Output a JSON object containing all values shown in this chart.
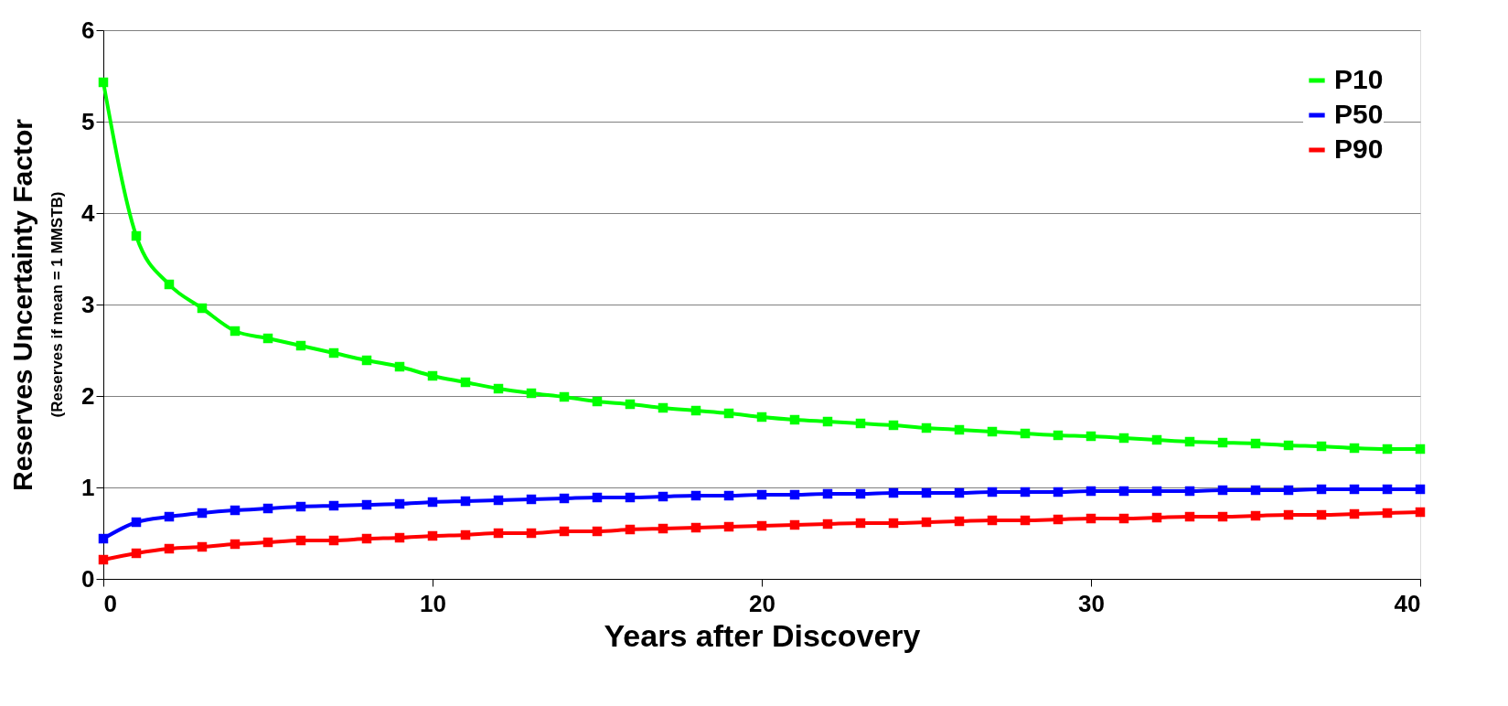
{
  "chart_data": {
    "type": "line",
    "xlabel": "Years after Discovery",
    "ylabel": "Reserves Uncertainty Factor",
    "annotations": [
      "(Reserves if mean = 1 MMSTB)"
    ],
    "x": [
      0,
      1,
      2,
      3,
      4,
      5,
      6,
      7,
      8,
      9,
      10,
      11,
      12,
      13,
      14,
      15,
      16,
      17,
      18,
      19,
      20,
      21,
      22,
      23,
      24,
      25,
      26,
      27,
      28,
      29,
      30,
      31,
      32,
      33,
      34,
      35,
      36,
      37,
      38,
      39,
      40
    ],
    "xlim": [
      0,
      40
    ],
    "xticks": [
      0,
      10,
      20,
      30,
      40
    ],
    "ylim": [
      0,
      6
    ],
    "yticks": [
      0,
      1,
      2,
      3,
      4,
      5,
      6
    ],
    "grid": "y",
    "legend": "top right",
    "marker": "square",
    "line_style": "solid",
    "series": [
      {
        "name": "P10",
        "color": "#00ff00",
        "values": [
          5.43,
          3.75,
          3.22,
          2.96,
          2.71,
          2.63,
          2.55,
          2.47,
          2.39,
          2.32,
          2.22,
          2.15,
          2.08,
          2.03,
          1.99,
          1.94,
          1.91,
          1.87,
          1.84,
          1.81,
          1.77,
          1.74,
          1.72,
          1.7,
          1.68,
          1.65,
          1.63,
          1.61,
          1.59,
          1.57,
          1.56,
          1.54,
          1.52,
          1.5,
          1.49,
          1.48,
          1.46,
          1.45,
          1.43,
          1.42,
          1.42
        ]
      },
      {
        "name": "P50",
        "color": "#0000ff",
        "values": [
          0.44,
          0.62,
          0.68,
          0.72,
          0.75,
          0.77,
          0.79,
          0.8,
          0.81,
          0.82,
          0.84,
          0.85,
          0.86,
          0.87,
          0.88,
          0.89,
          0.89,
          0.9,
          0.91,
          0.91,
          0.92,
          0.92,
          0.93,
          0.93,
          0.94,
          0.94,
          0.94,
          0.95,
          0.95,
          0.95,
          0.96,
          0.96,
          0.96,
          0.96,
          0.97,
          0.97,
          0.97,
          0.98,
          0.98,
          0.98,
          0.98
        ]
      },
      {
        "name": "P90",
        "color": "#ff0000",
        "values": [
          0.21,
          0.28,
          0.33,
          0.35,
          0.38,
          0.4,
          0.42,
          0.42,
          0.44,
          0.45,
          0.47,
          0.48,
          0.5,
          0.5,
          0.52,
          0.52,
          0.54,
          0.55,
          0.56,
          0.57,
          0.58,
          0.59,
          0.6,
          0.61,
          0.61,
          0.62,
          0.63,
          0.64,
          0.64,
          0.65,
          0.66,
          0.66,
          0.67,
          0.68,
          0.68,
          0.69,
          0.7,
          0.7,
          0.71,
          0.72,
          0.73
        ]
      }
    ]
  }
}
